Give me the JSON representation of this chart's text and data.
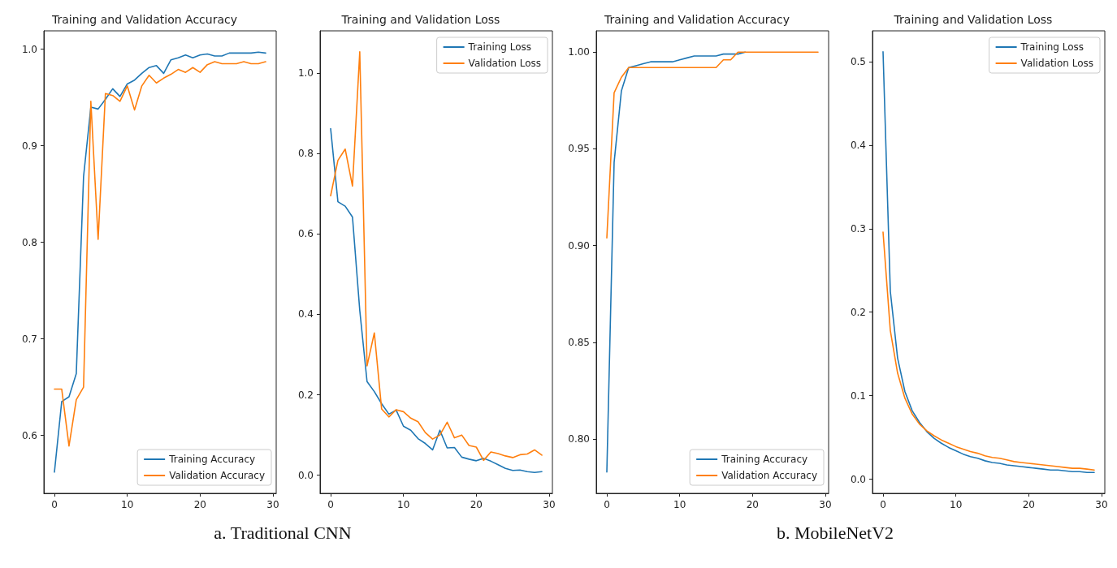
{
  "chart_data": [
    {
      "type": "line",
      "title": "Training and Validation Accuracy",
      "x": [
        0,
        1,
        2,
        3,
        4,
        5,
        6,
        7,
        8,
        9,
        10,
        11,
        12,
        13,
        14,
        15,
        16,
        17,
        18,
        19,
        20,
        21,
        22,
        23,
        24,
        25,
        26,
        27,
        28,
        29
      ],
      "series": [
        {
          "name": "Training Accuracy",
          "color": "#1f77b4",
          "values": [
            0.562,
            0.635,
            0.64,
            0.664,
            0.868,
            0.94,
            0.938,
            0.948,
            0.959,
            0.951,
            0.964,
            0.968,
            0.975,
            0.981,
            0.983,
            0.975,
            0.989,
            0.991,
            0.994,
            0.991,
            0.994,
            0.995,
            0.993,
            0.993,
            0.996,
            0.996,
            0.996,
            0.996,
            0.997,
            0.996
          ]
        },
        {
          "name": "Validation Accuracy",
          "color": "#ff7f0e",
          "values": [
            0.648,
            0.648,
            0.589,
            0.637,
            0.65,
            0.946,
            0.803,
            0.954,
            0.952,
            0.946,
            0.962,
            0.937,
            0.962,
            0.973,
            0.965,
            0.97,
            0.974,
            0.979,
            0.976,
            0.981,
            0.976,
            0.984,
            0.987,
            0.985,
            0.985,
            0.985,
            0.987,
            0.985,
            0.985,
            0.987
          ]
        }
      ],
      "xlim": [
        -1.45,
        30.45
      ],
      "xticks": [
        0,
        10,
        20,
        30
      ],
      "ylim": [
        0.54,
        1.019
      ],
      "yticks": [
        0.6,
        0.7,
        0.8,
        0.9,
        {
          "value": 1,
          "label": "1.0"
        }
      ],
      "grid": false,
      "legend": "bottom right",
      "marker": "none",
      "line_style": "solid",
      "annotations": [
        "a. Traditional CNN"
      ]
    },
    {
      "type": "line",
      "title": "Training and Validation Loss",
      "x": [
        0,
        1,
        2,
        3,
        4,
        5,
        6,
        7,
        8,
        9,
        10,
        11,
        12,
        13,
        14,
        15,
        16,
        17,
        18,
        19,
        20,
        21,
        22,
        23,
        24,
        25,
        26,
        27,
        28,
        29
      ],
      "series": [
        {
          "name": "Training Loss",
          "color": "#1f77b4",
          "values": [
            0.862,
            0.68,
            0.669,
            0.642,
            0.41,
            0.233,
            0.208,
            0.178,
            0.152,
            0.162,
            0.122,
            0.112,
            0.091,
            0.079,
            0.063,
            0.112,
            0.068,
            0.069,
            0.045,
            0.04,
            0.036,
            0.042,
            0.035,
            0.026,
            0.017,
            0.012,
            0.013,
            0.009,
            0.007,
            0.009
          ]
        },
        {
          "name": "Validation Loss",
          "color": "#ff7f0e",
          "values": [
            0.695,
            0.783,
            0.811,
            0.719,
            1.053,
            0.272,
            0.354,
            0.165,
            0.145,
            0.163,
            0.158,
            0.142,
            0.133,
            0.106,
            0.09,
            0.1,
            0.132,
            0.093,
            0.1,
            0.074,
            0.07,
            0.037,
            0.058,
            0.054,
            0.048,
            0.044,
            0.051,
            0.053,
            0.063,
            0.05
          ]
        }
      ],
      "xlim": [
        -1.45,
        30.45
      ],
      "xticks": [
        0,
        10,
        20,
        30
      ],
      "ylim": [
        -0.045,
        1.105
      ],
      "yticks": [
        {
          "value": 0,
          "label": "0.0"
        },
        0.2,
        0.4,
        0.6,
        0.8,
        {
          "value": 1,
          "label": "1.0"
        }
      ],
      "grid": false,
      "legend": "top right",
      "marker": "none",
      "line_style": "solid"
    },
    {
      "type": "line",
      "title": "Training and Validation Accuracy",
      "x": [
        0,
        1,
        2,
        3,
        4,
        5,
        6,
        7,
        8,
        9,
        10,
        11,
        12,
        13,
        14,
        15,
        16,
        17,
        18,
        19,
        20,
        21,
        22,
        23,
        24,
        25,
        26,
        27,
        28,
        29
      ],
      "series": [
        {
          "name": "Training Accuracy",
          "color": "#1f77b4",
          "values": [
            0.783,
            0.943,
            0.98,
            0.992,
            0.993,
            0.994,
            0.995,
            0.995,
            0.995,
            0.995,
            0.996,
            0.997,
            0.998,
            0.998,
            0.998,
            0.998,
            0.999,
            0.999,
            0.999,
            1.0,
            null,
            null,
            null,
            null,
            null,
            null,
            null,
            null,
            null,
            null
          ]
        },
        {
          "name": "Validation Accuracy",
          "color": "#ff7f0e",
          "values": [
            0.904,
            0.979,
            0.987,
            0.992,
            0.992,
            0.992,
            0.992,
            0.992,
            0.992,
            0.992,
            0.992,
            0.992,
            0.992,
            0.992,
            0.992,
            0.992,
            0.996,
            0.996,
            1.0,
            1.0,
            1.0,
            1.0,
            1.0,
            1.0,
            1.0,
            1.0,
            1.0,
            1.0,
            1.0,
            1.0
          ]
        }
      ],
      "xlim": [
        -1.45,
        30.45
      ],
      "xticks": [
        0,
        10,
        20,
        30
      ],
      "ylim": [
        0.772,
        1.011
      ],
      "yticks": [
        {
          "value": 0.8,
          "label": "0.80"
        },
        0.85,
        {
          "value": 0.9,
          "label": "0.90"
        },
        0.95,
        {
          "value": 1,
          "label": "1.00"
        }
      ],
      "grid": false,
      "legend": "bottom right",
      "marker": "none",
      "line_style": "solid",
      "annotations": [
        "b. MobileNetV2"
      ]
    },
    {
      "type": "line",
      "title": "Training and Validation Loss",
      "x": [
        0,
        1,
        2,
        3,
        4,
        5,
        6,
        7,
        8,
        9,
        10,
        11,
        12,
        13,
        14,
        15,
        16,
        17,
        18,
        19,
        20,
        21,
        22,
        23,
        24,
        25,
        26,
        27,
        28,
        29
      ],
      "series": [
        {
          "name": "Training Loss",
          "color": "#1f77b4",
          "values": [
            0.512,
            0.225,
            0.145,
            0.105,
            0.082,
            0.068,
            0.057,
            0.049,
            0.043,
            0.038,
            0.034,
            0.03,
            0.027,
            0.025,
            0.022,
            0.02,
            0.019,
            0.017,
            0.016,
            0.015,
            0.014,
            0.013,
            0.012,
            0.011,
            0.011,
            0.01,
            0.009,
            0.009,
            0.008,
            0.008
          ]
        },
        {
          "name": "Validation Loss",
          "color": "#ff7f0e",
          "values": [
            0.296,
            0.178,
            0.127,
            0.097,
            0.078,
            0.066,
            0.058,
            0.052,
            0.047,
            0.043,
            0.039,
            0.036,
            0.033,
            0.031,
            0.028,
            0.026,
            0.025,
            0.023,
            0.021,
            0.02,
            0.019,
            0.018,
            0.017,
            0.016,
            0.015,
            0.014,
            0.013,
            0.013,
            0.012,
            0.011
          ]
        }
      ],
      "xlim": [
        -1.45,
        30.45
      ],
      "xticks": [
        0,
        10,
        20,
        30
      ],
      "ylim": [
        -0.017,
        0.537
      ],
      "yticks": [
        {
          "value": 0,
          "label": "0.0"
        },
        0.1,
        0.2,
        0.3,
        0.4,
        0.5
      ],
      "grid": false,
      "legend": "top right",
      "marker": "none",
      "line_style": "solid"
    }
  ]
}
